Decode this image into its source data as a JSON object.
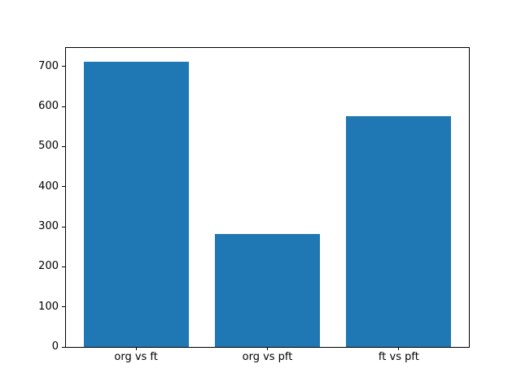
{
  "chart_data": {
    "type": "bar",
    "title": "",
    "xlabel": "",
    "ylabel": "",
    "categories": [
      "org vs ft",
      "org vs pft",
      "ft vs pft"
    ],
    "values": [
      712,
      281,
      575
    ],
    "yticks": [
      0,
      100,
      200,
      300,
      400,
      500,
      600,
      700
    ],
    "ylim": [
      0,
      748
    ],
    "bar_width_fraction": 0.8,
    "bar_color": "#1f77b4",
    "background_color": "#ffffff",
    "spine_color": "#000000",
    "grid": false,
    "legend": null
  }
}
